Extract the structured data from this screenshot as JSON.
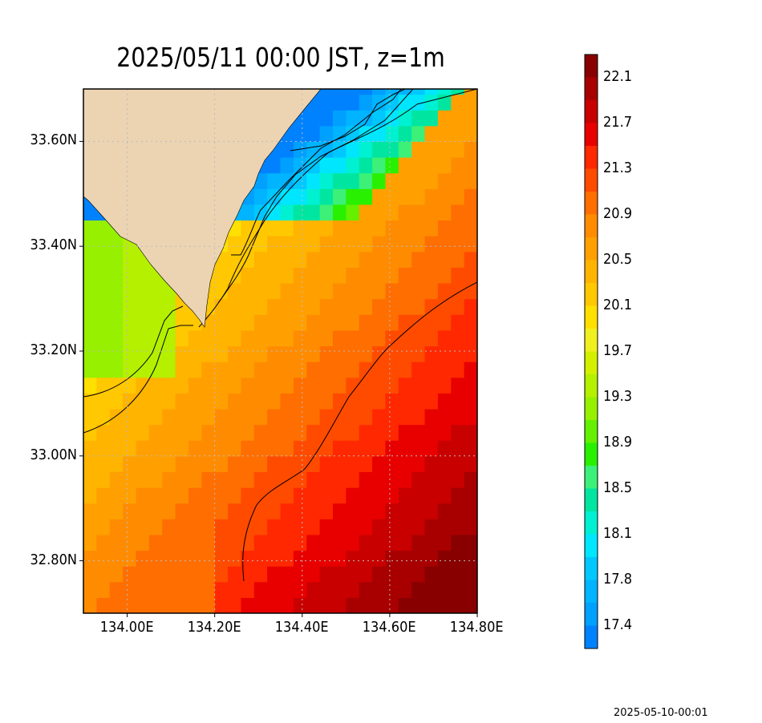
{
  "header": {
    "title": "2025/05/11 00:00 JST, z=1m"
  },
  "footer": {
    "timestamp": "2025-05-10-00:01"
  },
  "map": {
    "lon_range": [
      133.9,
      134.8
    ],
    "lat_range": [
      32.7,
      33.7
    ],
    "lat_ticks": [
      {
        "value": 33.6,
        "label": "33.60N"
      },
      {
        "value": 33.4,
        "label": "33.40N"
      },
      {
        "value": 33.2,
        "label": "33.20N"
      },
      {
        "value": 33.0,
        "label": "33.00N"
      },
      {
        "value": 32.8,
        "label": "32.80N"
      }
    ],
    "lon_ticks": [
      {
        "value": 134.0,
        "label": "134.00E"
      },
      {
        "value": 134.2,
        "label": "134.20E"
      },
      {
        "value": 134.4,
        "label": "134.40E"
      },
      {
        "value": 134.6,
        "label": "134.60E"
      },
      {
        "value": 134.8,
        "label": "134.80E"
      }
    ],
    "land_color": "#ecd4b2",
    "grid": true
  },
  "colorbar": {
    "ticks": [
      "22.1",
      "21.7",
      "21.3",
      "20.9",
      "20.5",
      "20.1",
      "19.7",
      "19.3",
      "18.9",
      "18.5",
      "18.1",
      "17.8",
      "17.4"
    ],
    "colors_top_to_bottom": [
      "#880000",
      "#a80000",
      "#c80000",
      "#e80000",
      "#ff2800",
      "#ff4b00",
      "#ff6e00",
      "#ff8c00",
      "#ffa000",
      "#ffb400",
      "#ffc800",
      "#ffe000",
      "#f0f020",
      "#d2f000",
      "#b4f000",
      "#96f000",
      "#64f000",
      "#28f000",
      "#3cf078",
      "#00e6a0",
      "#00f0d2",
      "#00e6ff",
      "#00c8ff",
      "#00b4ff",
      "#00a0ff",
      "#0082ff"
    ]
  }
}
